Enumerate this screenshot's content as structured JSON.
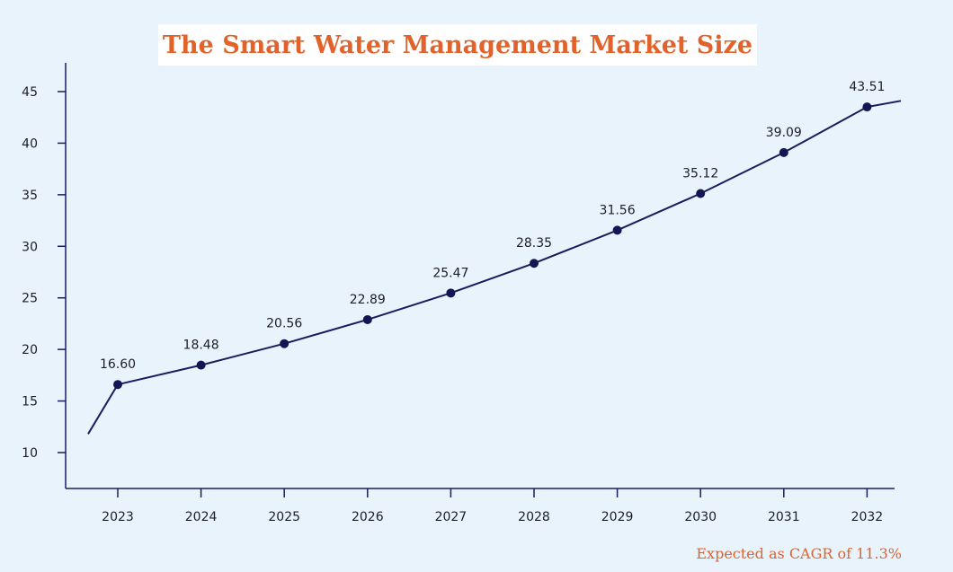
{
  "chart_data": {
    "type": "line",
    "title": "The Smart Water Management Market Size",
    "categories": [
      "2023",
      "2024",
      "2025",
      "2026",
      "2027",
      "2028",
      "2029",
      "2030",
      "2031",
      "2032"
    ],
    "series": [
      {
        "name": "Market Size",
        "values": [
          16.6,
          18.48,
          20.56,
          22.89,
          25.47,
          28.35,
          31.56,
          35.12,
          39.09,
          43.51
        ],
        "labels": [
          "16.60",
          "18.48",
          "20.56",
          "22.89",
          "25.47",
          "28.35",
          "31.56",
          "35.12",
          "39.09",
          "43.51"
        ]
      }
    ],
    "y_ticks": [
      10,
      15,
      20,
      25,
      30,
      35,
      40,
      45
    ],
    "ylim": [
      7,
      48
    ],
    "xlabel": "",
    "ylabel": "",
    "grid": false,
    "footnote": "Expected as CAGR of 11.3%",
    "colors": {
      "line": "#1a1c5e",
      "marker": "#141654",
      "axis": "#1a1c5e",
      "title": "#e2622b",
      "background": "#e8f3fc"
    }
  }
}
